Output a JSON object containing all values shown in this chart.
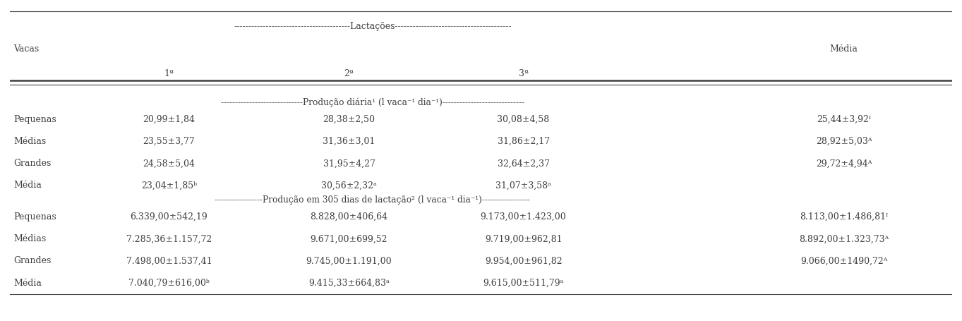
{
  "header_lactacoes": "----------------------------------------Lactações----------------------------------------",
  "col_vacas": "Vacas",
  "col_media": "Média",
  "col_1a": "1ª",
  "col_2a": "2ª",
  "col_3a": "3ª",
  "section1_label": "-----------------------------Produção diária¹ (l vaca⁻¹ dia⁻¹)-----------------------------",
  "section2_label": "-----------------Produção em 305 dias de lactação² (l vaca⁻¹ dia⁻¹)-----------------",
  "rows_section1": [
    {
      "vacas": "Pequenas",
      "l1": "20,99±1,84",
      "l2": "28,38±2,50",
      "l3": "30,08±4,58",
      "media": "25,44±3,92ᴵ"
    },
    {
      "vacas": "Médias",
      "l1": "23,55±3,77",
      "l2": "31,36±3,01",
      "l3": "31,86±2,17",
      "media": "28,92±5,03ᴬ"
    },
    {
      "vacas": "Grandes",
      "l1": "24,58±5,04",
      "l2": "31,95±4,27",
      "l3": "32,64±2,37",
      "media": "29,72±4,94ᴬ"
    },
    {
      "vacas": "Média",
      "l1": "23,04±1,85ᵇ",
      "l2": "30,56±2,32ᵃ",
      "l3": "31,07±3,58ᵃ",
      "media": ""
    }
  ],
  "rows_section2": [
    {
      "vacas": "Pequenas",
      "l1": "6.339,00±542,19",
      "l2": "8.828,00±406,64",
      "l3": "9.173,00±1.423,00",
      "media": "8.113,00±1.486,81ᴵ"
    },
    {
      "vacas": "Médias",
      "l1": "7.285,36±1.157,72",
      "l2": "9.671,00±699,52",
      "l3": "9.719,00±962,81",
      "media": "8.892,00±1.323,73ᴬ"
    },
    {
      "vacas": "Grandes",
      "l1": "7.498,00±1.537,41",
      "l2": "9.745,00±1.191,00",
      "l3": "9.954,00±961,82",
      "media": "9.066,00±1490,72ᴬ"
    },
    {
      "vacas": "Média",
      "l1": "7.040,79±616,00ᵇ",
      "l2": "9.415,33±664,83ᵃ",
      "l3": "9.615,00±511,79ᵃ",
      "media": ""
    }
  ],
  "font_size": 9.0,
  "font_family": "DejaVu Serif",
  "text_color": "#404040",
  "bg_color": "#ffffff"
}
